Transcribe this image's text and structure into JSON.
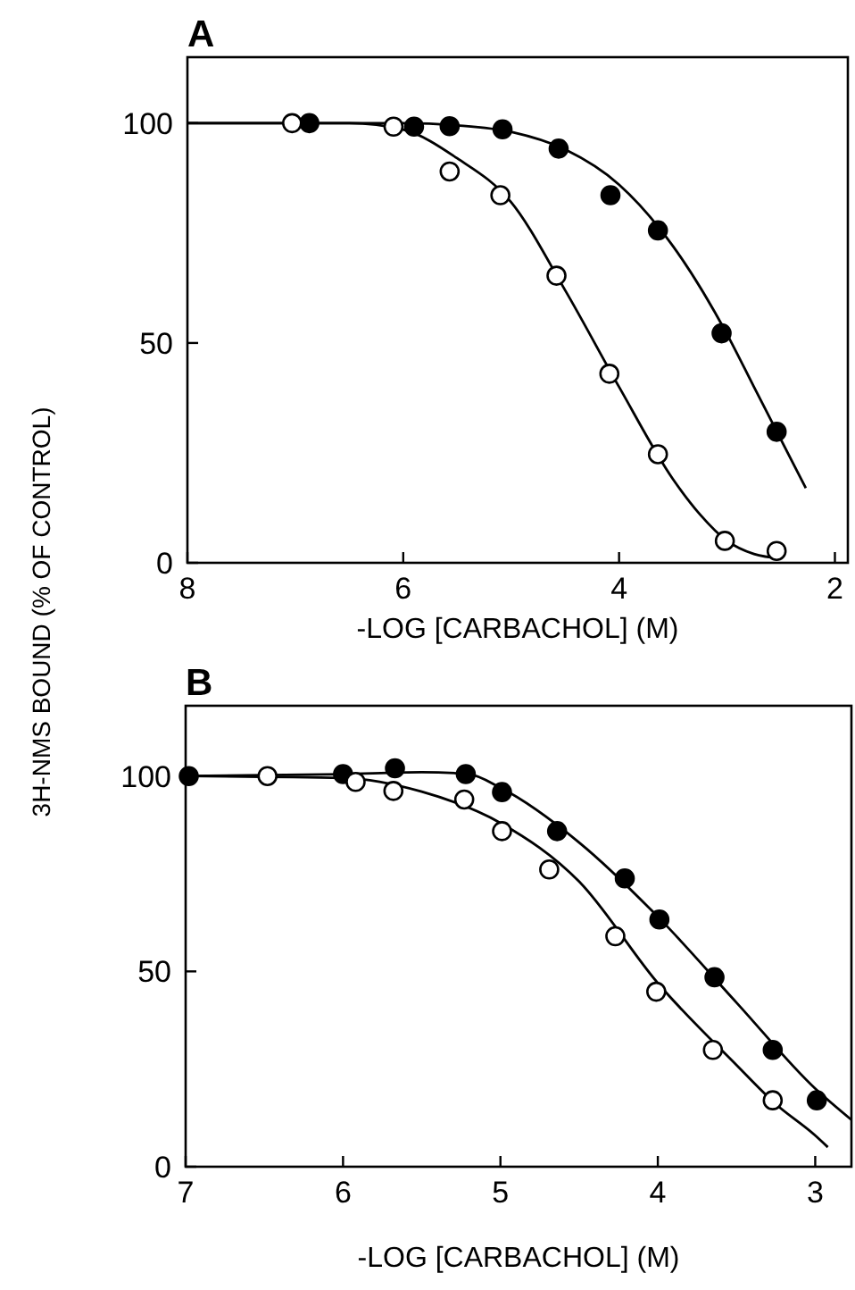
{
  "chart_data": [
    {
      "type": "scatter",
      "title": "A",
      "xlabel": "-LOG [CARBACHOL] (M)",
      "ylabel": "3H-NMS BOUND (% OF CONTROL)",
      "xlim": [
        8,
        1.88
      ],
      "xticks": [
        8,
        6,
        4,
        2
      ],
      "ylim": [
        0,
        115
      ],
      "yticks": [
        0,
        50,
        100
      ],
      "marker": "circle",
      "grid": false,
      "series": [
        {
          "type": "line",
          "color": "#000000",
          "marker": "none",
          "x": [
            8,
            6,
            5.5,
            5,
            4.5,
            4,
            3.5,
            3,
            2.75,
            2.5,
            2.27
          ],
          "values": [
            100,
            100,
            99.5,
            98,
            94,
            86,
            72,
            52,
            40,
            28,
            17
          ]
        },
        {
          "type": "line",
          "color": "#000000",
          "marker": "none",
          "x": [
            8,
            6.5,
            6,
            5.5,
            5,
            4.5,
            4,
            3.5,
            3.25,
            3,
            2.75,
            2.5
          ],
          "values": [
            100,
            100,
            98.5,
            92,
            82,
            62,
            40,
            19,
            11,
            5,
            2,
            1
          ]
        },
        {
          "color": "#000000",
          "x": [
            6.87,
            5.9,
            5.57,
            5.08,
            4.56,
            4.08,
            3.64,
            3.05,
            2.54
          ],
          "values": [
            100,
            99.2,
            99.3,
            98.6,
            94.2,
            83.6,
            75.6,
            52.2,
            29.8
          ]
        },
        {
          "color": "#ffffff",
          "x": [
            7.03,
            6.09,
            5.57,
            5.1,
            4.58,
            4.09,
            3.64,
            3.02,
            2.54
          ],
          "values": [
            100,
            99.2,
            89,
            83.6,
            65.3,
            43,
            24.7,
            5,
            2.7
          ]
        }
      ]
    },
    {
      "type": "scatter",
      "title": "B",
      "xlabel": "-LOG [CARBACHOL] (M)",
      "xlim": [
        7,
        2.77
      ],
      "xticks": [
        7,
        6,
        5,
        4,
        3
      ],
      "ylim": [
        0,
        118
      ],
      "yticks": [
        0,
        50,
        100
      ],
      "marker": "circle",
      "grid": false,
      "series": [
        {
          "type": "line",
          "color": "#000000",
          "marker": "none",
          "x": [
            7,
            6,
            5.5,
            5.2,
            5,
            4.5,
            4,
            3.5,
            3,
            2.77
          ],
          "values": [
            100,
            100.5,
            101,
            100.5,
            97,
            83,
            64,
            42,
            20,
            12
          ]
        },
        {
          "type": "line",
          "color": "#000000",
          "marker": "none",
          "x": [
            7,
            6,
            5.5,
            5,
            4.5,
            4,
            3.5,
            3.25,
            3,
            2.92
          ],
          "values": [
            100,
            99.5,
            96,
            88,
            73,
            47,
            26,
            16,
            8,
            5
          ]
        },
        {
          "color": "#000000",
          "x": [
            6.98,
            6.0,
            5.67,
            5.22,
            4.99,
            4.64,
            4.21,
            3.99,
            3.64,
            3.27,
            2.99
          ],
          "values": [
            100,
            100.5,
            102,
            100.5,
            95.9,
            85.9,
            73.8,
            63.3,
            48.5,
            29.9,
            17
          ]
        },
        {
          "color": "#ffffff",
          "x": [
            6.48,
            5.92,
            5.68,
            5.23,
            4.99,
            4.69,
            4.27,
            4.01,
            3.65,
            3.27
          ],
          "values": [
            100,
            98.5,
            96.2,
            94,
            85.9,
            76.1,
            59,
            44.8,
            29.9,
            17
          ]
        }
      ]
    }
  ]
}
